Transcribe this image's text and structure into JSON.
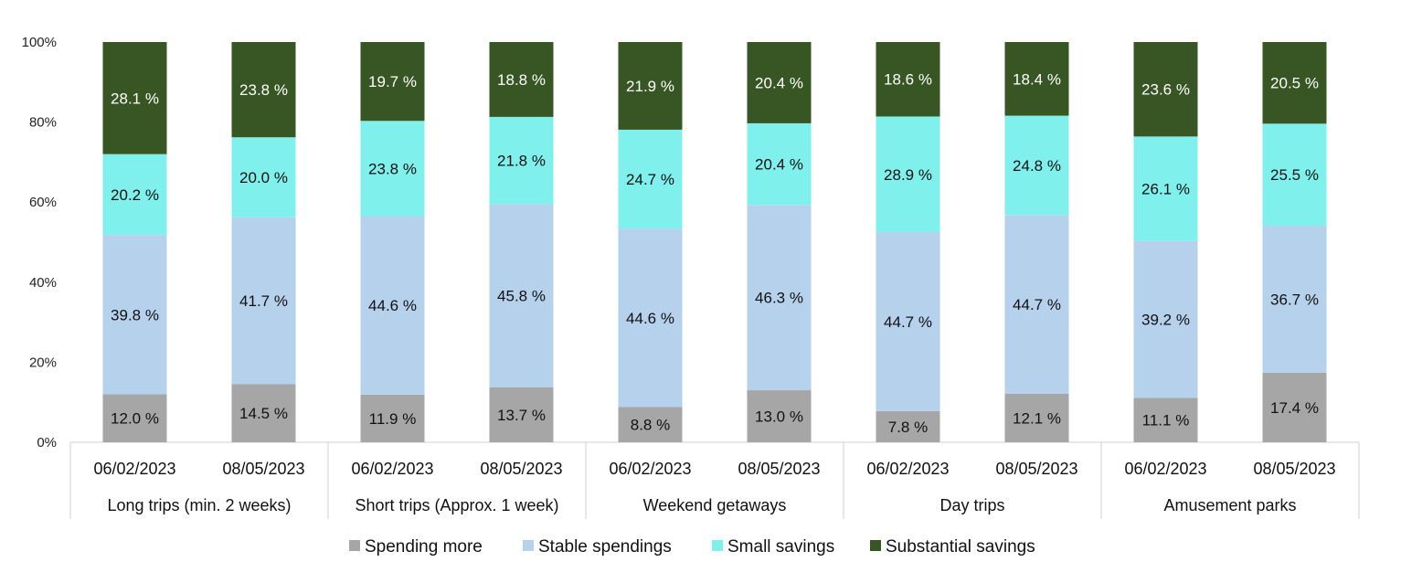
{
  "chart_data": {
    "type": "bar",
    "stacked": true,
    "percent": true,
    "ylim": [
      0,
      100
    ],
    "yticks": [
      "0%",
      "20%",
      "40%",
      "60%",
      "80%",
      "100%"
    ],
    "groups": [
      {
        "label": "Long trips (min. 2 weeks)",
        "bars": [
          {
            "date": "06/02/2023",
            "values": [
              12.0,
              39.8,
              20.2,
              28.1
            ],
            "labels": [
              "12.0 %",
              "39.8 %",
              "20.2 %",
              "28.1 %"
            ]
          },
          {
            "date": "08/05/2023",
            "values": [
              14.5,
              41.7,
              20.0,
              23.8
            ],
            "labels": [
              "14.5 %",
              "41.7 %",
              "20.0 %",
              "23.8 %"
            ]
          }
        ]
      },
      {
        "label": "Short trips (Approx. 1 week)",
        "bars": [
          {
            "date": "06/02/2023",
            "values": [
              11.9,
              44.6,
              23.8,
              19.7
            ],
            "labels": [
              "11.9 %",
              "44.6 %",
              "23.8 %",
              "19.7 %"
            ]
          },
          {
            "date": "08/05/2023",
            "values": [
              13.7,
              45.8,
              21.8,
              18.8
            ],
            "labels": [
              "13.7 %",
              "45.8 %",
              "21.8 %",
              "18.8 %"
            ]
          }
        ]
      },
      {
        "label": "Weekend getaways",
        "bars": [
          {
            "date": "06/02/2023",
            "values": [
              8.8,
              44.6,
              24.7,
              21.9
            ],
            "labels": [
              "8.8 %",
              "44.6 %",
              "24.7 %",
              "21.9 %"
            ]
          },
          {
            "date": "08/05/2023",
            "values": [
              13.0,
              46.3,
              20.4,
              20.4
            ],
            "labels": [
              "13.0 %",
              "46.3 %",
              "20.4 %",
              "20.4 %"
            ]
          }
        ]
      },
      {
        "label": "Day trips",
        "bars": [
          {
            "date": "06/02/2023",
            "values": [
              7.8,
              44.7,
              28.9,
              18.6
            ],
            "labels": [
              "7.8 %",
              "44.7 %",
              "28.9 %",
              "18.6 %"
            ]
          },
          {
            "date": "08/05/2023",
            "values": [
              12.1,
              44.7,
              24.8,
              18.4
            ],
            "labels": [
              "12.1 %",
              "44.7 %",
              "24.8 %",
              "18.4 %"
            ]
          }
        ]
      },
      {
        "label": "Amusement parks",
        "bars": [
          {
            "date": "06/02/2023",
            "values": [
              11.1,
              39.2,
              26.1,
              23.6
            ],
            "labels": [
              "11.1 %",
              "39.2 %",
              "26.1 %",
              "23.6 %"
            ]
          },
          {
            "date": "08/05/2023",
            "values": [
              17.4,
              36.7,
              25.5,
              20.5
            ],
            "labels": [
              "17.4 %",
              "36.7 %",
              "25.5 %",
              "20.5 %"
            ]
          }
        ]
      }
    ],
    "series": [
      {
        "name": "Spending more",
        "color": "#a6a6a6",
        "label_color": "#111111"
      },
      {
        "name": "Stable spendings",
        "color": "#b6d1ec",
        "label_color": "#111111"
      },
      {
        "name": "Small savings",
        "color": "#7ff0ec",
        "label_color": "#111111"
      },
      {
        "name": "Substantial savings",
        "color": "#375623",
        "label_color": "#ffffff"
      }
    ],
    "legend_position": "bottom"
  }
}
